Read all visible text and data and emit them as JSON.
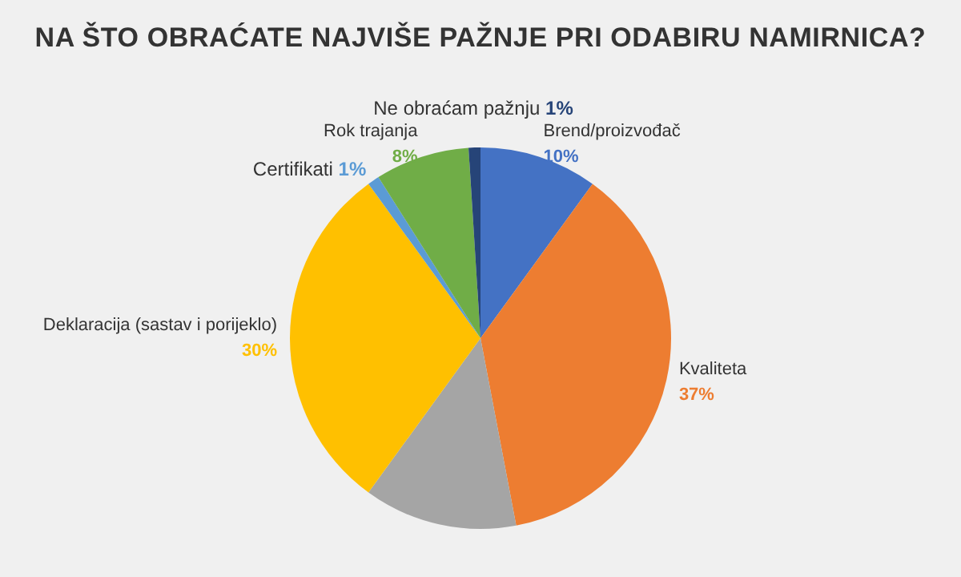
{
  "chart_data": {
    "type": "pie",
    "title": "NA ŠTO OBRAĆATE NAJVIŠE PAŽNJE PRI ODABIRU NAMIRNICA?",
    "categories": [
      "Brend/proizvođač",
      "Kvaliteta",
      null,
      "Deklaracija (sastav i porijeklo)",
      "Certifikati",
      "Rok trajanja",
      "Ne obraćam pažnju"
    ],
    "values": [
      10,
      37,
      13,
      30,
      1,
      8,
      1
    ],
    "colors": [
      "#4472c4",
      "#ed7d31",
      "#a5a5a5",
      "#ffc000",
      "#5b9bd5",
      "#70ad47",
      "#264478"
    ],
    "value_labels": [
      "10%",
      "37%",
      null,
      "30%",
      "1%",
      "8%",
      "1%"
    ]
  }
}
